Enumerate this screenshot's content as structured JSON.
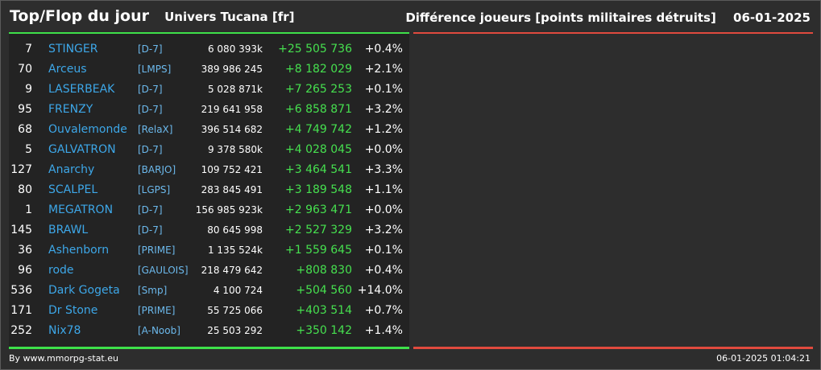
{
  "header": {
    "title": "Top/Flop du jour",
    "subtitle": "Univers Tucana [fr]",
    "metric": "Différence joueurs [points militaires détruits]",
    "date": "06-01-2025"
  },
  "colors": {
    "top_bar": "#3ee04a",
    "flop_bar": "#e04a3e",
    "player_name": "#3da7e8",
    "gain": "#46e04f"
  },
  "rows": [
    {
      "rank": "7",
      "name": "STINGER",
      "ally": "[D-7]",
      "points": "6 080 393k",
      "diff": "+25 505 736",
      "pct": "+0.4%"
    },
    {
      "rank": "70",
      "name": "Arceus",
      "ally": "[LMPS]",
      "points": "389 986 245",
      "diff": "+8 182 029",
      "pct": "+2.1%"
    },
    {
      "rank": "9",
      "name": "LASERBEAK",
      "ally": "[D-7]",
      "points": "5 028 871k",
      "diff": "+7 265 253",
      "pct": "+0.1%"
    },
    {
      "rank": "95",
      "name": "FRENZY",
      "ally": "[D-7]",
      "points": "219 641 958",
      "diff": "+6 858 871",
      "pct": "+3.2%"
    },
    {
      "rank": "68",
      "name": "Ouvalemonde",
      "ally": "[RelaX]",
      "points": "396 514 682",
      "diff": "+4 749 742",
      "pct": "+1.2%"
    },
    {
      "rank": "5",
      "name": "GALVATRON",
      "ally": "[D-7]",
      "points": "9 378 580k",
      "diff": "+4 028 045",
      "pct": "+0.0%"
    },
    {
      "rank": "127",
      "name": "Anarchy",
      "ally": "[BARJO]",
      "points": "109 752 421",
      "diff": "+3 464 541",
      "pct": "+3.3%"
    },
    {
      "rank": "80",
      "name": "SCALPEL",
      "ally": "[LGPS]",
      "points": "283 845 491",
      "diff": "+3 189 548",
      "pct": "+1.1%"
    },
    {
      "rank": "1",
      "name": "MEGATRON",
      "ally": "[D-7]",
      "points": "156 985 923k",
      "diff": "+2 963 471",
      "pct": "+0.0%"
    },
    {
      "rank": "145",
      "name": "BRAWL",
      "ally": "[D-7]",
      "points": "80 645 998",
      "diff": "+2 527 329",
      "pct": "+3.2%"
    },
    {
      "rank": "36",
      "name": "Ashenborn",
      "ally": "[PRIME]",
      "points": "1 135 524k",
      "diff": "+1 559 645",
      "pct": "+0.1%"
    },
    {
      "rank": "96",
      "name": "rode",
      "ally": "[GAULOIS]",
      "points": "218 479 642",
      "diff": "+808 830",
      "pct": "+0.4%"
    },
    {
      "rank": "536",
      "name": "Dark Gogeta",
      "ally": "[Smp]",
      "points": "4 100 724",
      "diff": "+504 560",
      "pct": "+14.0%"
    },
    {
      "rank": "171",
      "name": "Dr Stone",
      "ally": "[PRIME]",
      "points": "55 725 066",
      "diff": "+403 514",
      "pct": "+0.7%"
    },
    {
      "rank": "252",
      "name": "Nix78",
      "ally": "[A-Noob]",
      "points": "25 503 292",
      "diff": "+350 142",
      "pct": "+1.4%"
    }
  ],
  "footer": {
    "source": "By www.mmorpg-stat.eu",
    "timestamp": "06-01-2025 01:04:21"
  }
}
